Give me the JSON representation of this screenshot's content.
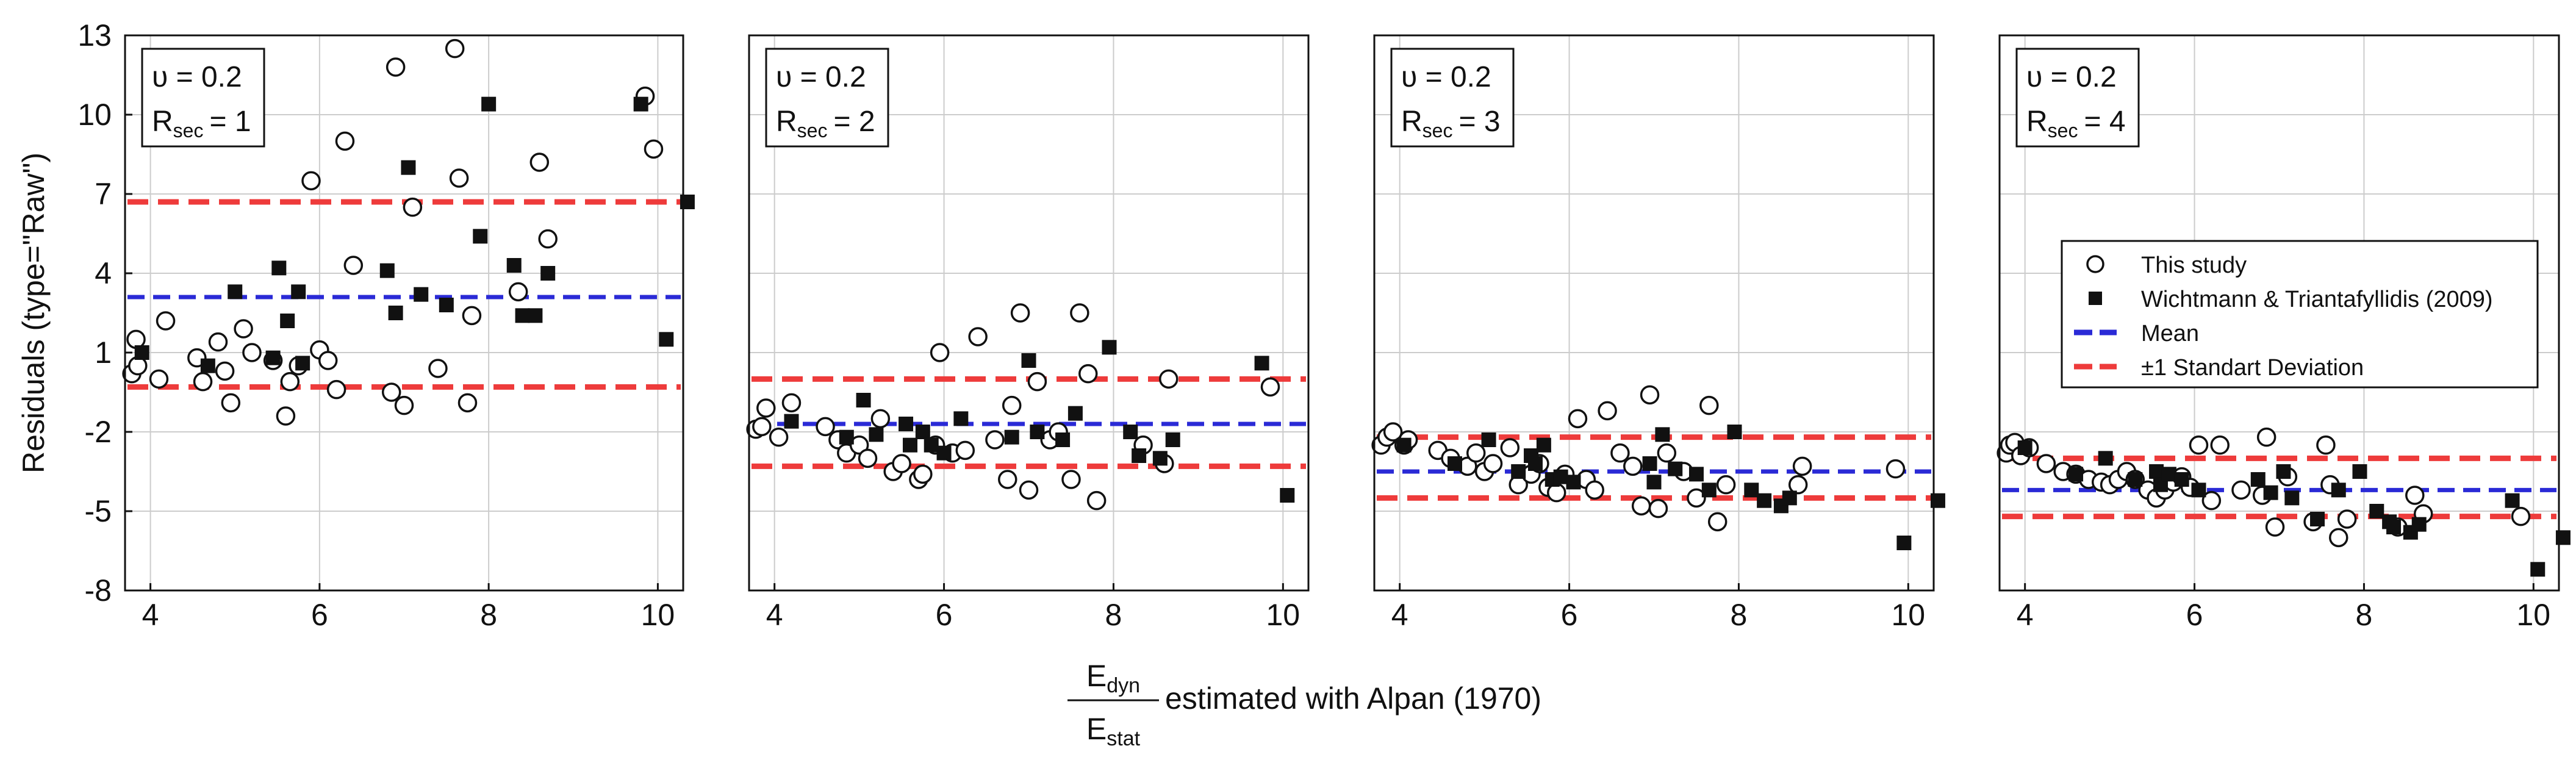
{
  "chart_data": {
    "type": "scatter",
    "ylabel": "Residuals (type=\"Raw\")",
    "xlabel": {
      "numerator": "E",
      "numerator_sub": "dyn",
      "denominator": "E",
      "denominator_sub": "stat",
      "suffix": "estimated with Alpan (1970)"
    },
    "xlim": [
      3.7,
      10.3
    ],
    "ylim": [
      -8,
      13
    ],
    "xticks": [
      4,
      6,
      8,
      10
    ],
    "yticks": [
      -8,
      -5,
      -2,
      1,
      4,
      7,
      10,
      13
    ],
    "grid": true,
    "legend": {
      "placement": "panel-4-top",
      "entries": [
        {
          "label": "This study",
          "marker": "open-circle"
        },
        {
          "label": "Wichtmann & Triantafyllidis (2009)",
          "marker": "filled-square"
        },
        {
          "label": "Mean",
          "line": "dashed",
          "color": "#2a2ad6"
        },
        {
          "label": "±1 Standart Deviation",
          "line": "dashed",
          "color": "#ee3b3b"
        }
      ]
    },
    "colors": {
      "mean": "#2a2ad6",
      "sd": "#ee3b3b",
      "grid": "#cccccc"
    },
    "panels": [
      {
        "annotation": {
          "nu": "υ = 0.2",
          "r_main": "R",
          "r_sub": "sec",
          "r_value": "= 1"
        },
        "mean": 3.1,
        "sd_upper": 6.7,
        "sd_lower": -0.3,
        "series": [
          {
            "name": "This study",
            "marker": "open-circle",
            "x": [
              3.78,
              3.83,
              3.85,
              4.1,
              4.18,
              4.55,
              4.62,
              4.8,
              4.88,
              4.95,
              5.1,
              5.2,
              5.45,
              5.6,
              5.65,
              5.75,
              5.9,
              6.0,
              6.1,
              6.2,
              6.3,
              6.4,
              6.85,
              6.9,
              7.0,
              7.1,
              7.4,
              7.6,
              7.65,
              7.75,
              7.8,
              8.35,
              8.6,
              8.7,
              9.85,
              9.95
            ],
            "y": [
              0.2,
              1.5,
              0.5,
              0.0,
              2.2,
              0.8,
              -0.1,
              1.4,
              0.3,
              -0.9,
              1.9,
              1.0,
              0.7,
              -1.4,
              -0.1,
              0.5,
              7.5,
              1.1,
              0.7,
              -0.4,
              9.0,
              4.3,
              -0.5,
              11.8,
              -1.0,
              6.5,
              0.4,
              12.5,
              7.6,
              -0.9,
              2.4,
              3.3,
              8.2,
              5.3,
              10.7,
              8.7
            ]
          },
          {
            "name": "Wichtmann & Triantafyllidis (2009)",
            "marker": "filled-square",
            "x": [
              3.9,
              4.68,
              5.0,
              5.45,
              5.52,
              5.62,
              5.75,
              5.8,
              6.8,
              6.9,
              7.05,
              7.2,
              7.5,
              7.9,
              8.0,
              8.3,
              8.4,
              8.55,
              8.7,
              9.8,
              10.1,
              10.35
            ],
            "y": [
              1.0,
              0.5,
              3.3,
              0.8,
              4.2,
              2.2,
              3.3,
              0.6,
              4.1,
              2.5,
              8.0,
              3.2,
              2.8,
              5.4,
              10.4,
              4.3,
              2.4,
              2.4,
              4.0,
              10.4,
              1.5,
              6.7
            ]
          }
        ]
      },
      {
        "annotation": {
          "nu": "υ = 0.2",
          "r_main": "R",
          "r_sub": "sec",
          "r_value": "= 2"
        },
        "mean": -1.7,
        "sd_upper": 0.0,
        "sd_lower": -3.3,
        "series": [
          {
            "name": "This study",
            "marker": "open-circle",
            "x": [
              3.78,
              3.85,
              3.9,
              4.05,
              4.2,
              4.6,
              4.75,
              4.85,
              5.0,
              5.1,
              5.25,
              5.4,
              5.5,
              5.7,
              5.75,
              5.9,
              5.95,
              6.1,
              6.25,
              6.4,
              6.6,
              6.75,
              6.8,
              6.9,
              7.0,
              7.1,
              7.25,
              7.35,
              7.5,
              7.6,
              7.7,
              7.8,
              8.35,
              8.6,
              8.65,
              9.85
            ],
            "y": [
              -1.9,
              -1.8,
              -1.1,
              -2.2,
              -0.9,
              -1.8,
              -2.3,
              -2.8,
              -2.5,
              -3.0,
              -1.5,
              -3.5,
              -3.2,
              -3.8,
              -3.6,
              -2.5,
              1.0,
              -2.8,
              -2.7,
              1.6,
              -2.3,
              -3.8,
              -1.0,
              2.5,
              -4.2,
              -0.1,
              -2.3,
              -2.0,
              -3.8,
              2.5,
              0.2,
              -4.6,
              -2.5,
              -3.2,
              -0.0,
              -0.3
            ]
          },
          {
            "name": "Wichtmann & Triantafyllidis (2009)",
            "marker": "filled-square",
            "x": [
              4.2,
              4.85,
              5.05,
              5.2,
              5.55,
              5.6,
              5.75,
              5.85,
              6.0,
              6.2,
              6.8,
              7.0,
              7.1,
              7.4,
              7.55,
              7.95,
              8.2,
              8.3,
              8.55,
              8.7,
              9.75,
              10.05
            ],
            "y": [
              -1.6,
              -2.2,
              -0.8,
              -2.1,
              -1.7,
              -2.5,
              -2.0,
              -2.5,
              -2.8,
              -1.5,
              -2.2,
              0.7,
              -2.0,
              -2.3,
              -1.3,
              1.2,
              -2.0,
              -2.9,
              -3.0,
              -2.3,
              0.6,
              -4.4
            ]
          }
        ]
      },
      {
        "annotation": {
          "nu": "υ = 0.2",
          "r_main": "R",
          "r_sub": "sec",
          "r_value": "= 3"
        },
        "mean": -3.5,
        "sd_upper": -2.2,
        "sd_lower": -4.5,
        "series": [
          {
            "name": "This study",
            "marker": "open-circle",
            "x": [
              3.78,
              3.85,
              3.92,
              4.05,
              4.1,
              4.45,
              4.6,
              4.8,
              4.9,
              5.0,
              5.1,
              5.3,
              5.4,
              5.55,
              5.65,
              5.75,
              5.85,
              5.95,
              6.1,
              6.2,
              6.3,
              6.45,
              6.6,
              6.75,
              6.85,
              6.95,
              7.05,
              7.15,
              7.35,
              7.5,
              7.65,
              7.75,
              7.85,
              8.7,
              8.75,
              9.85
            ],
            "y": [
              -2.5,
              -2.2,
              -2.0,
              -2.5,
              -2.3,
              -2.7,
              -3.0,
              -3.3,
              -2.8,
              -3.5,
              -3.2,
              -2.6,
              -4.0,
              -3.6,
              -3.2,
              -4.1,
              -4.3,
              -3.6,
              -1.5,
              -3.8,
              -4.2,
              -1.2,
              -2.8,
              -3.3,
              -4.8,
              -0.6,
              -4.9,
              -2.8,
              -3.5,
              -4.5,
              -1.0,
              -5.4,
              -4.0,
              -4.0,
              -3.3,
              -3.4
            ]
          },
          {
            "name": "Wichtmann & Triantafyllidis (2009)",
            "marker": "filled-square",
            "x": [
              4.05,
              4.65,
              5.05,
              5.4,
              5.55,
              5.6,
              5.7,
              5.8,
              5.9,
              6.05,
              6.95,
              7.0,
              7.1,
              7.25,
              7.5,
              7.65,
              7.95,
              8.15,
              8.3,
              8.5,
              8.6,
              9.95,
              10.35
            ],
            "y": [
              -2.5,
              -3.2,
              -2.3,
              -3.5,
              -2.9,
              -3.2,
              -2.5,
              -3.8,
              -3.7,
              -3.9,
              -3.2,
              -3.9,
              -2.1,
              -3.4,
              -3.6,
              -4.2,
              -2.0,
              -4.2,
              -4.6,
              -4.8,
              -4.5,
              -6.2,
              -4.6
            ]
          }
        ]
      },
      {
        "annotation": {
          "nu": "υ = 0.2",
          "r_main": "R",
          "r_sub": "sec",
          "r_value": "= 4"
        },
        "mean": -4.2,
        "sd_upper": -3.0,
        "sd_lower": -5.2,
        "series": [
          {
            "name": "This study",
            "marker": "open-circle",
            "x": [
              3.78,
              3.82,
              3.88,
              3.95,
              4.05,
              4.25,
              4.45,
              4.6,
              4.75,
              4.9,
              5.0,
              5.1,
              5.2,
              5.3,
              5.45,
              5.55,
              5.65,
              5.75,
              5.85,
              5.95,
              6.05,
              6.2,
              6.3,
              6.55,
              6.8,
              6.85,
              6.95,
              7.1,
              7.4,
              7.55,
              7.6,
              7.7,
              7.8,
              8.4,
              8.6,
              8.7,
              9.85
            ],
            "y": [
              -2.8,
              -2.5,
              -2.4,
              -2.9,
              -2.6,
              -3.2,
              -3.5,
              -3.6,
              -3.8,
              -3.9,
              -4.0,
              -3.8,
              -3.5,
              -3.8,
              -4.2,
              -4.5,
              -4.2,
              -3.9,
              -3.7,
              -4.1,
              -2.5,
              -4.6,
              -2.5,
              -4.2,
              -4.4,
              -2.2,
              -5.6,
              -3.7,
              -5.4,
              -2.5,
              -4.0,
              -6.0,
              -5.3,
              -5.6,
              -4.4,
              -5.1,
              -5.2
            ]
          },
          {
            "name": "Wichtmann & Triantafyllidis (2009)",
            "marker": "filled-square",
            "x": [
              4.0,
              4.6,
              4.95,
              5.3,
              5.55,
              5.6,
              5.7,
              5.85,
              6.05,
              6.75,
              6.9,
              7.05,
              7.15,
              7.45,
              7.7,
              7.95,
              8.15,
              8.3,
              8.35,
              8.55,
              8.65,
              9.75,
              10.05,
              10.35
            ],
            "y": [
              -2.6,
              -3.6,
              -3.0,
              -3.8,
              -3.5,
              -4.0,
              -3.6,
              -3.8,
              -4.2,
              -3.8,
              -4.3,
              -3.5,
              -4.5,
              -5.3,
              -4.2,
              -3.5,
              -5.0,
              -5.4,
              -5.6,
              -5.8,
              -5.5,
              -4.6,
              -7.2,
              -6.0
            ]
          }
        ]
      }
    ]
  }
}
